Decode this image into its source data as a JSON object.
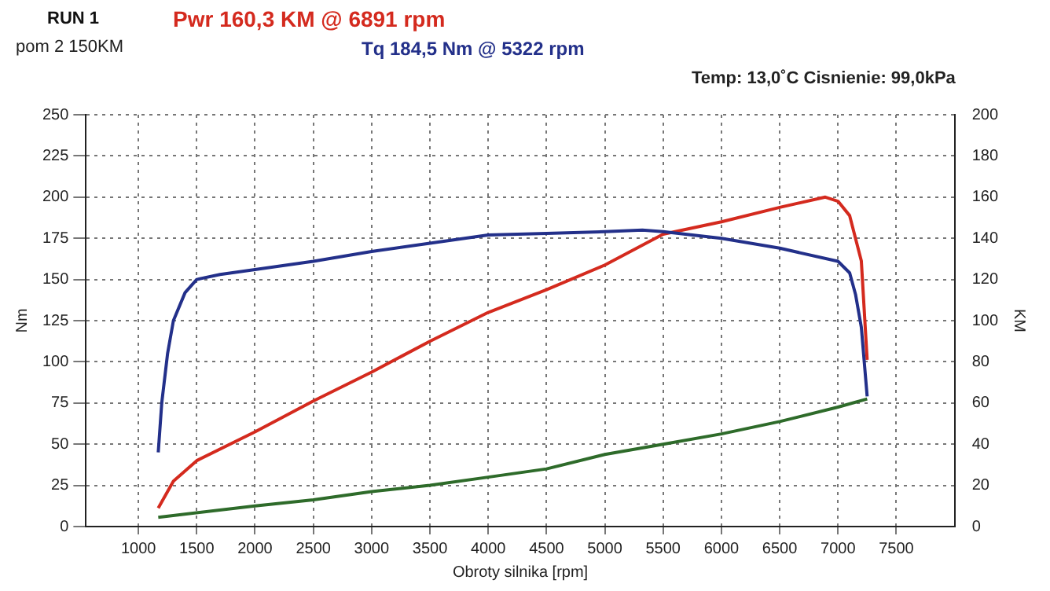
{
  "chart_data": {
    "type": "line",
    "xlabel": "Obroty silnika [rpm]",
    "ylabel": "Nm",
    "y2label": "KM",
    "annotations": [
      "RUN 1",
      "Pwr  160,3 KM @ 6891 rpm",
      "Tq 184,5 Nm @ 5322 rpm",
      "pom 2 150KM",
      "Temp: 13,0˚C   Cisnienie: 99,0kPa"
    ],
    "xlim": [
      550,
      8000
    ],
    "xticks": [
      1000,
      1500,
      2000,
      2500,
      3000,
      3500,
      4000,
      4500,
      5000,
      5500,
      6000,
      6500,
      7000,
      7500
    ],
    "ylim": [
      0,
      250
    ],
    "yticks": [
      0,
      25,
      50,
      75,
      100,
      125,
      150,
      175,
      200,
      225,
      250
    ],
    "y2lim": [
      0,
      200
    ],
    "y2ticks": [
      0,
      20,
      40,
      60,
      80,
      100,
      120,
      140,
      160,
      180,
      200
    ],
    "grid": true,
    "legend": false,
    "marker": "none",
    "line_style": "solid",
    "series": [
      {
        "color": "#23308a",
        "x": [
          1170,
          1200,
          1250,
          1300,
          1400,
          1500,
          1700,
          2000,
          2500,
          3000,
          3500,
          4000,
          4500,
          5000,
          5322,
          5500,
          6000,
          6500,
          7000,
          7100,
          7150,
          7200,
          7250
        ],
        "values": [
          45,
          75,
          105,
          125,
          142,
          150,
          153,
          156,
          161,
          167,
          172,
          177,
          178,
          179,
          180,
          179,
          175,
          169,
          161,
          154,
          141,
          121,
          79
        ]
      },
      {
        "color": "#d42a1e",
        "axis": "y2",
        "x": [
          1170,
          1300,
          1500,
          2000,
          2500,
          3000,
          3500,
          4000,
          4500,
          5000,
          5500,
          6000,
          6500,
          6891,
          7000,
          7100,
          7200,
          7250
        ],
        "values": [
          9,
          22,
          32,
          46,
          61,
          75,
          90,
          104,
          115,
          127,
          142,
          148,
          155,
          160,
          158,
          151,
          129,
          81
        ]
      },
      {
        "color": "#2e6b2a",
        "axis": "y2",
        "x": [
          1170,
          2000,
          2500,
          3000,
          3500,
          4000,
          4500,
          5000,
          5500,
          6000,
          6500,
          7000,
          7250
        ],
        "values": [
          4.5,
          10,
          13,
          17,
          20,
          24,
          28,
          35,
          40,
          45,
          51,
          58,
          62
        ]
      }
    ]
  }
}
